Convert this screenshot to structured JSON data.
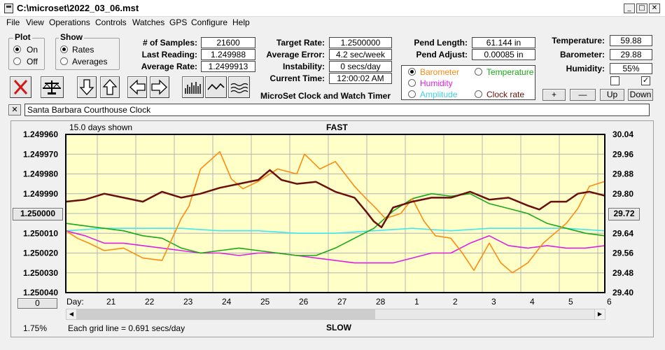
{
  "window": {
    "title": "C:\\microset\\2022_03_06.mst"
  },
  "menu": [
    "File",
    "View",
    "Operations",
    "Controls",
    "Watches",
    "GPS",
    "Configure",
    "Help"
  ],
  "plot_group": {
    "title": "Plot",
    "on": "On",
    "off": "Off",
    "selected": "On"
  },
  "show_group": {
    "title": "Show",
    "rates": "Rates",
    "averages": "Averages",
    "selected": "Rates"
  },
  "stats": {
    "samples_label": "# of Samples:",
    "samples": "21600",
    "last_label": "Last Reading:",
    "last": "1.249988",
    "avg_label": "Average Rate:",
    "avg": "1.2499913",
    "target_label": "Target Rate:",
    "target": "1.2500000",
    "error_label": "Average Error:",
    "error": "4.2 sec/week",
    "instab_label": "Instability:",
    "instab": "0 secs/day",
    "time_label": "Current Time:",
    "time": "12:00:02 AM",
    "app_name": "MicroSet Clock and Watch Timer",
    "pend_len_label": "Pend Length:",
    "pend_len": "61.144 in",
    "pend_adj_label": "Pend Adjust:",
    "pend_adj": "0.00085 in",
    "temp_label": "Temperature:",
    "temp": "59.88",
    "baro_label": "Barometer:",
    "baro": "29.88",
    "hum_label": "Humidity:",
    "hum": "55%"
  },
  "right_axis_select": {
    "barometer": "Barometer",
    "temperature": "Temperature",
    "humidity": "Humidity",
    "amplitude": "Amplitude",
    "clock_rate": "Clock rate",
    "selected": "Barometer"
  },
  "adjust_buttons": {
    "plus": "+",
    "minus": "—",
    "up": "Up",
    "down": "Down"
  },
  "checkboxes": [
    false,
    true
  ],
  "watch_name": "Santa Barbara Courthouse Clock",
  "close_glyph": "✕",
  "chart_data": {
    "type": "line",
    "days_shown": "15.0 days shown",
    "top_label": "FAST",
    "bottom_label": "SLOW",
    "day_prefix": "Day:",
    "days": [
      "21",
      "22",
      "23",
      "24",
      "25",
      "26",
      "27",
      "28",
      "1",
      "2",
      "3",
      "4",
      "5",
      "6"
    ],
    "left_ticks": [
      "1.249960",
      "1.249970",
      "1.249980",
      "1.249990",
      "1.250000",
      "1.250010",
      "1.250020",
      "1.250030",
      "1.250040"
    ],
    "right_ticks": [
      "30.04",
      "29.96",
      "29.88",
      "29.80",
      "29.72",
      "29.64",
      "29.56",
      "29.48",
      "29.40"
    ],
    "left_ylim": [
      1.24996,
      1.25004
    ],
    "right_ylim": [
      29.4,
      30.04
    ],
    "center_button_left": "1.250000",
    "center_button_right": "29.72",
    "offset_button": "0",
    "grid_note": "Each grid line = 0.691 secs/day",
    "percent_label": "1.75%",
    "colors": {
      "rate": "#6a0e0e",
      "barometer": "#ff8a10",
      "temperature": "#18a818",
      "humidity": "#e020e0",
      "amplitude": "#40e8f0",
      "plot_bg": "#ffffc8"
    },
    "series": [
      {
        "name": "Rate",
        "axis": "left",
        "color": "#6a0e0e",
        "points": [
          [
            0,
            1.249994
          ],
          [
            0.5,
            1.249993
          ],
          [
            1,
            1.24999
          ],
          [
            1.5,
            1.249992
          ],
          [
            2,
            1.249994
          ],
          [
            2.5,
            1.249989
          ],
          [
            3,
            1.249992
          ],
          [
            3.5,
            1.24999
          ],
          [
            4,
            1.249987
          ],
          [
            4.5,
            1.249985
          ],
          [
            5,
            1.249983
          ],
          [
            5.3,
            1.249978
          ],
          [
            5.6,
            1.249983
          ],
          [
            6,
            1.249985
          ],
          [
            6.5,
            1.249984
          ],
          [
            7,
            1.249989
          ],
          [
            7.5,
            1.249992
          ],
          [
            7.8,
            1.249999
          ],
          [
            8,
            1.250004
          ],
          [
            8.2,
            1.250007
          ],
          [
            8.5,
            1.249997
          ],
          [
            9,
            1.249994
          ],
          [
            9.5,
            1.249992
          ],
          [
            10,
            1.249992
          ],
          [
            10.5,
            1.249989
          ],
          [
            11,
            1.249993
          ],
          [
            11.5,
            1.249992
          ],
          [
            12,
            1.249996
          ],
          [
            12.3,
            1.249998
          ],
          [
            12.6,
            1.249994
          ],
          [
            13,
            1.249994
          ],
          [
            13.3,
            1.24999
          ],
          [
            13.6,
            1.249989
          ],
          [
            14,
            1.249991
          ]
        ]
      },
      {
        "name": "Barometer",
        "axis": "right",
        "color": "#ff8a10",
        "points": [
          [
            0,
            29.65
          ],
          [
            0.3,
            29.62
          ],
          [
            0.6,
            29.6
          ],
          [
            1,
            29.57
          ],
          [
            1.5,
            29.58
          ],
          [
            2,
            29.54
          ],
          [
            2.5,
            29.53
          ],
          [
            3,
            29.7
          ],
          [
            3.2,
            29.75
          ],
          [
            3.5,
            29.9
          ],
          [
            4,
            29.97
          ],
          [
            4.3,
            29.86
          ],
          [
            4.6,
            29.82
          ],
          [
            5,
            29.85
          ],
          [
            5.5,
            29.9
          ],
          [
            6,
            29.88
          ],
          [
            6.2,
            29.96
          ],
          [
            6.6,
            29.9
          ],
          [
            7,
            29.93
          ],
          [
            7.5,
            29.83
          ],
          [
            7.8,
            29.78
          ],
          [
            8,
            29.75
          ],
          [
            8.3,
            29.7
          ],
          [
            8.7,
            29.72
          ],
          [
            9,
            29.78
          ],
          [
            9.3,
            29.69
          ],
          [
            9.6,
            29.63
          ],
          [
            10,
            29.62
          ],
          [
            10.3,
            29.56
          ],
          [
            10.6,
            29.49
          ],
          [
            11,
            29.6
          ],
          [
            11.3,
            29.52
          ],
          [
            11.6,
            29.48
          ],
          [
            12,
            29.52
          ],
          [
            12.4,
            29.6
          ],
          [
            12.7,
            29.64
          ],
          [
            13,
            29.68
          ],
          [
            13.3,
            29.74
          ],
          [
            13.6,
            29.83
          ],
          [
            14,
            29.85
          ]
        ]
      },
      {
        "name": "Temperature",
        "axis": "right",
        "color": "#18a818",
        "points": [
          [
            0,
            29.68
          ],
          [
            0.5,
            29.67
          ],
          [
            1,
            29.66
          ],
          [
            1.5,
            29.65
          ],
          [
            2,
            29.63
          ],
          [
            2.5,
            29.62
          ],
          [
            3,
            29.58
          ],
          [
            3.5,
            29.56
          ],
          [
            4,
            29.57
          ],
          [
            4.5,
            29.58
          ],
          [
            5,
            29.57
          ],
          [
            5.5,
            29.56
          ],
          [
            6,
            29.55
          ],
          [
            6.5,
            29.55
          ],
          [
            7,
            29.58
          ],
          [
            7.5,
            29.62
          ],
          [
            8,
            29.66
          ],
          [
            8.5,
            29.73
          ],
          [
            9,
            29.78
          ],
          [
            9.5,
            29.8
          ],
          [
            10,
            29.79
          ],
          [
            10.5,
            29.8
          ],
          [
            11,
            29.76
          ],
          [
            11.5,
            29.74
          ],
          [
            12,
            29.72
          ],
          [
            12.5,
            29.68
          ],
          [
            13,
            29.66
          ],
          [
            13.5,
            29.64
          ],
          [
            14,
            29.63
          ]
        ]
      },
      {
        "name": "Humidity",
        "axis": "right",
        "color": "#e020e0",
        "points": [
          [
            0,
            29.65
          ],
          [
            0.5,
            29.63
          ],
          [
            1,
            29.6
          ],
          [
            1.5,
            29.6
          ],
          [
            2,
            29.59
          ],
          [
            2.5,
            29.58
          ],
          [
            3,
            29.57
          ],
          [
            3.5,
            29.56
          ],
          [
            4,
            29.56
          ],
          [
            4.5,
            29.55
          ],
          [
            5,
            29.56
          ],
          [
            5.5,
            29.56
          ],
          [
            6,
            29.55
          ],
          [
            6.5,
            29.54
          ],
          [
            7,
            29.53
          ],
          [
            7.5,
            29.52
          ],
          [
            8,
            29.52
          ],
          [
            8.5,
            29.52
          ],
          [
            9,
            29.54
          ],
          [
            9.5,
            29.56
          ],
          [
            10,
            29.56
          ],
          [
            10.5,
            29.6
          ],
          [
            11,
            29.63
          ],
          [
            11.5,
            29.59
          ],
          [
            12,
            29.58
          ],
          [
            12.5,
            29.59
          ],
          [
            13,
            29.58
          ],
          [
            13.5,
            29.58
          ],
          [
            14,
            29.59
          ]
        ]
      },
      {
        "name": "Amplitude",
        "axis": "right",
        "color": "#40e8f0",
        "points": [
          [
            0,
            29.65
          ],
          [
            1,
            29.66
          ],
          [
            2,
            29.66
          ],
          [
            3,
            29.66
          ],
          [
            4,
            29.65
          ],
          [
            5,
            29.65
          ],
          [
            6,
            29.64
          ],
          [
            7,
            29.64
          ],
          [
            8,
            29.65
          ],
          [
            9,
            29.66
          ],
          [
            10,
            29.65
          ],
          [
            11,
            29.66
          ],
          [
            12,
            29.66
          ],
          [
            13,
            29.66
          ],
          [
            14,
            29.65
          ]
        ]
      }
    ]
  }
}
